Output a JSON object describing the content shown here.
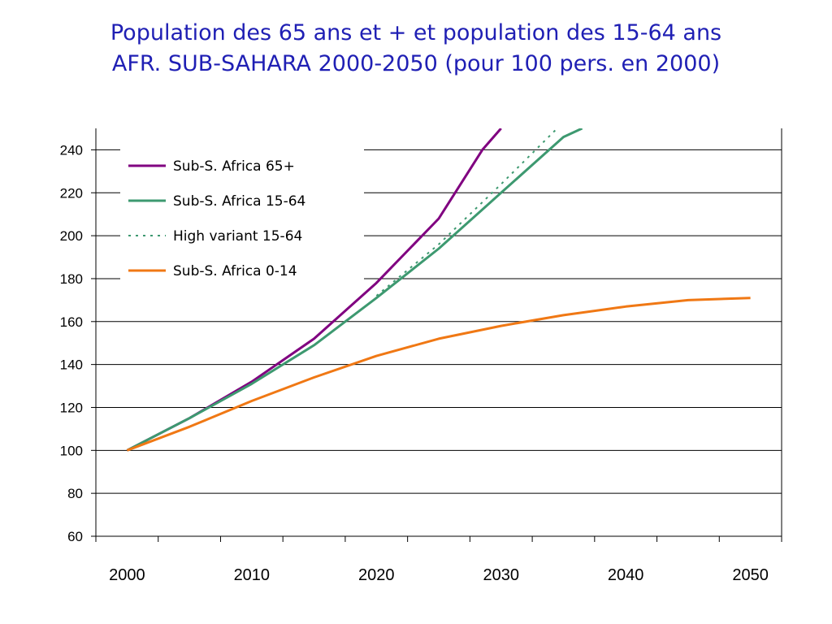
{
  "title": {
    "line1": "Population des 65 ans et + et population des 15-64 ans",
    "line2": "AFR. SUB-SAHARA 2000-2050 (pour 100 pers. en 2000)"
  },
  "colors": {
    "title": "#1f1fb4",
    "s65": "#800080",
    "s1564": "#3d9970",
    "high": "#3d9970",
    "s014": "#f07814",
    "grid": "#000000"
  },
  "chart_data": {
    "type": "line",
    "title": "",
    "xlabel": "",
    "ylabel": "",
    "xlim": [
      1997.5,
      2052.5
    ],
    "ylim": [
      60,
      250
    ],
    "yticks": [
      60,
      80,
      100,
      120,
      140,
      160,
      180,
      200,
      220,
      240
    ],
    "xticks": [
      2000,
      2010,
      2020,
      2030,
      2040,
      2050
    ],
    "grid": true,
    "legend_position": "top-left",
    "series": [
      {
        "name": "Sub-S. Africa  65+",
        "key": "s65",
        "style": "solid",
        "x": [
          2000,
          2005,
          2010,
          2015,
          2020,
          2025,
          2028.5,
          2030
        ],
        "values": [
          100,
          115,
          132,
          152,
          178,
          208,
          240,
          250
        ]
      },
      {
        "name": "Sub-S. Africa  15-64",
        "key": "s1564",
        "style": "solid",
        "x": [
          2000,
          2005,
          2010,
          2015,
          2020,
          2025,
          2030,
          2035,
          2036.5
        ],
        "values": [
          100,
          115,
          131,
          149,
          171,
          194,
          220,
          246,
          250
        ]
      },
      {
        "name": "High variant  15-64",
        "key": "high",
        "style": "dotted",
        "x": [
          2020,
          2025,
          2030,
          2034.5
        ],
        "values": [
          172,
          196,
          224,
          250
        ]
      },
      {
        "name": "Sub-S. Africa  0-14",
        "key": "s014",
        "style": "solid",
        "x": [
          2000,
          2005,
          2010,
          2015,
          2020,
          2025,
          2030,
          2035,
          2040,
          2045,
          2050
        ],
        "values": [
          100,
          111,
          123,
          134,
          144,
          152,
          158,
          163,
          167,
          170,
          171
        ]
      }
    ]
  }
}
